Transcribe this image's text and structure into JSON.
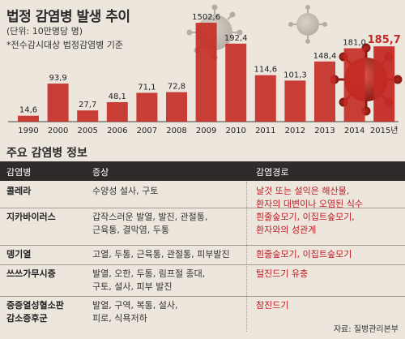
{
  "header": {
    "title": "법정 감염병 발생 추이",
    "unit": "(단위: 10만명당 명)",
    "note": "*전수감시대상 법정감염병 기준"
  },
  "chart_data": {
    "type": "bar",
    "categories": [
      "1990",
      "2000",
      "2005",
      "2006",
      "2007",
      "2008",
      "2009",
      "2010",
      "2011",
      "2012",
      "2013",
      "2014",
      "2015년"
    ],
    "values": [
      14.6,
      93.9,
      27.7,
      48.1,
      71.1,
      72.8,
      1502.6,
      192.4,
      114.6,
      101.3,
      148.4,
      181.0,
      185.7
    ],
    "value_labels": [
      "14,6",
      "93,9",
      "27,7",
      "48,1",
      "71,1",
      "72,8",
      "1502,6",
      "192,4",
      "114,6",
      "101,3",
      "148,4",
      "181,0",
      "185,7"
    ],
    "highlight_index": 12,
    "colors": {
      "bar": "#c42b25",
      "highlight_label": "#c42b25",
      "label": "#222222",
      "axis": "#444444"
    },
    "title": "법정 감염병 발생 추이",
    "xlabel": "",
    "ylabel": ""
  },
  "info": {
    "title": "주요 감염병 정보",
    "headers": {
      "disease": "감염병",
      "symptom": "증상",
      "route": "감염경로"
    },
    "rows": [
      {
        "disease": [
          "콜레라"
        ],
        "symptom": [
          "수양성 설사, 구토"
        ],
        "route": [
          "날것 또는 설익은 해산물,",
          "환자의 대변이나 오염된 식수"
        ]
      },
      {
        "disease": [
          "지카바이러스"
        ],
        "symptom": [
          "갑작스러운 발열, 발진, 관절통,",
          "근육통, 결막염, 두통"
        ],
        "route": [
          "흰줄숲모기, 이집트숲모기,",
          "환자와의 성관계"
        ]
      },
      {
        "disease": [
          "뎅기열"
        ],
        "symptom": [
          "고열, 두통, 근육통, 관절통, 피부발진"
        ],
        "route": [
          "흰줄숲모기, 이집트숲모기"
        ]
      },
      {
        "disease": [
          "쓰쓰가무시증"
        ],
        "symptom": [
          "발열, 오한, 두통, 림프절 종대,",
          "구토, 설사, 피부 발진"
        ],
        "route": [
          "털진드기 유충"
        ]
      },
      {
        "disease": [
          "중증열성혈소판",
          "감소증후군"
        ],
        "symptom": [
          "발열, 구역, 복통, 설사,",
          "피로, 식욕저하"
        ],
        "route": [
          "참진드기"
        ]
      }
    ]
  },
  "source": "자료: 질병관리본부"
}
